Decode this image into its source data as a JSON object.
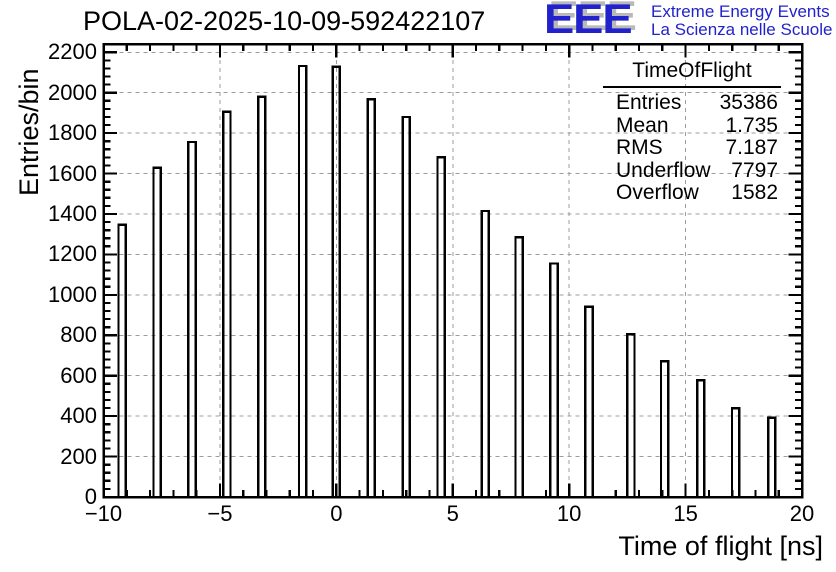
{
  "header": {
    "title": "POLA-02-2025-10-09-592422107",
    "logo": {
      "text": "EEE",
      "line1": "Extreme Energy Events",
      "line2": "La Scienza nelle Scuole",
      "color": "#2222cc",
      "shadow_color": "#b9b9b9"
    }
  },
  "stats": {
    "title": "TimeOfFlight",
    "rows": [
      [
        "Entries",
        "35386"
      ],
      [
        "Mean",
        "1.735"
      ],
      [
        "RMS",
        "7.187"
      ],
      [
        "Underflow",
        "7797"
      ],
      [
        "Overflow",
        "1582"
      ]
    ]
  },
  "chart_data": {
    "type": "bar",
    "title": "POLA-02-2025-10-09-592422107",
    "xlabel": "Time of flight [ns]",
    "ylabel": "Entries/bin",
    "xlim": [
      -10,
      20
    ],
    "ylim": [
      0,
      2241
    ],
    "x_major_ticks": [
      {
        "value": -10,
        "label": "−10"
      },
      {
        "value": -5,
        "label": "−5"
      },
      {
        "value": 0,
        "label": "0"
      },
      {
        "value": 5,
        "label": "5"
      },
      {
        "value": 10,
        "label": "10"
      },
      {
        "value": 15,
        "label": "15"
      },
      {
        "value": 20,
        "label": "20"
      }
    ],
    "x_minor_step": 1,
    "y_major_ticks": [
      {
        "value": 0,
        "label": "0"
      },
      {
        "value": 200,
        "label": "200"
      },
      {
        "value": 400,
        "label": "400"
      },
      {
        "value": 600,
        "label": "600"
      },
      {
        "value": 800,
        "label": "800"
      },
      {
        "value": 1000,
        "label": "1000"
      },
      {
        "value": 1200,
        "label": "1200"
      },
      {
        "value": 1400,
        "label": "1400"
      },
      {
        "value": 1600,
        "label": "1600"
      },
      {
        "value": 1800,
        "label": "1800"
      },
      {
        "value": 2000,
        "label": "2000"
      },
      {
        "value": 2200,
        "label": "2200"
      }
    ],
    "y_minor_step": 40,
    "grid": {
      "show": true,
      "style": "dashed",
      "color": "#9c9c9c",
      "position": "major"
    },
    "bar_style": {
      "fill": "none",
      "stroke": "#000000",
      "width_ns": 0.31
    },
    "bins_ns": [
      -9.2,
      -7.7,
      -6.2,
      -4.7,
      -3.2,
      -1.45,
      0.0,
      1.5,
      3.0,
      4.5,
      6.4,
      7.85,
      9.35,
      10.85,
      12.65,
      14.1,
      15.65,
      17.15,
      18.7
    ],
    "counts": [
      1346,
      1628,
      1756,
      1906,
      1980,
      2132,
      2128,
      1968,
      1880,
      1680,
      1415,
      1285,
      1155,
      941,
      806,
      672,
      578,
      439,
      392
    ]
  }
}
